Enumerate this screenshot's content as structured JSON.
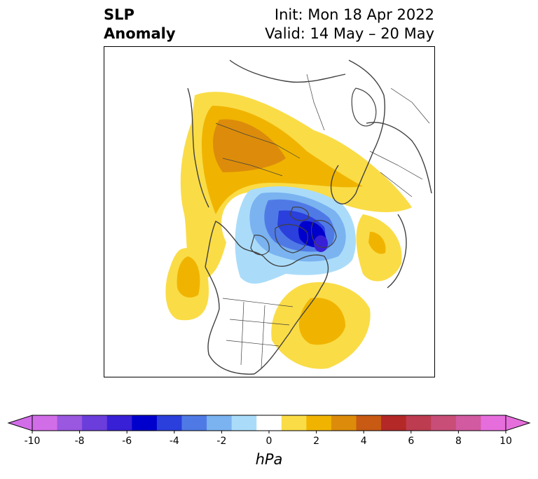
{
  "title": {
    "left_line1": "SLP",
    "left_line2": "Anomaly",
    "init": "Init: Mon 18 Apr 2022",
    "valid": "Valid: 14 May – 20 May"
  },
  "map": {
    "projection": "polar-stereographic",
    "region": "Northern Hemisphere (North America, Arctic, Greenland, Europe)",
    "features": [
      {
        "name": "positive-anomaly-eurasia-arctic",
        "sign": "positive",
        "peak_hpa": 4,
        "region": "Siberia / Arctic Eurasia"
      },
      {
        "name": "negative-anomaly-canadian-arctic",
        "sign": "negative",
        "peak_hpa": -7,
        "region": "Canadian Arctic Archipelago / Baffin Bay"
      },
      {
        "name": "positive-anomaly-west-atlantic",
        "sign": "positive",
        "peak_hpa": 3,
        "region": "Western North Atlantic off US East Coast"
      },
      {
        "name": "positive-anomaly-east-pacific",
        "sign": "positive",
        "peak_hpa": 3,
        "region": "Northeast Pacific"
      },
      {
        "name": "positive-anomaly-north-atlantic",
        "sign": "positive",
        "peak_hpa": 2,
        "region": "North Atlantic south of Iceland"
      }
    ]
  },
  "colorbar": {
    "units": "hPa",
    "tick_labels": [
      "-10",
      "-8",
      "-6",
      "-4",
      "-2",
      "0",
      "2",
      "4",
      "6",
      "8",
      "10"
    ],
    "colors": [
      "#d26de8",
      "#9a57e0",
      "#6b3ddb",
      "#3820d6",
      "#0000cc",
      "#2a3fdc",
      "#4f7ae6",
      "#7ab3f0",
      "#aadcfa",
      "#ffffff",
      "#fadc46",
      "#f0b400",
      "#dc8c0a",
      "#c85a14",
      "#b42828",
      "#be3c50",
      "#c84e78",
      "#d25aa0",
      "#e66edc"
    ],
    "extend_min_color": "#d26de8",
    "extend_max_color": "#e66edc"
  }
}
